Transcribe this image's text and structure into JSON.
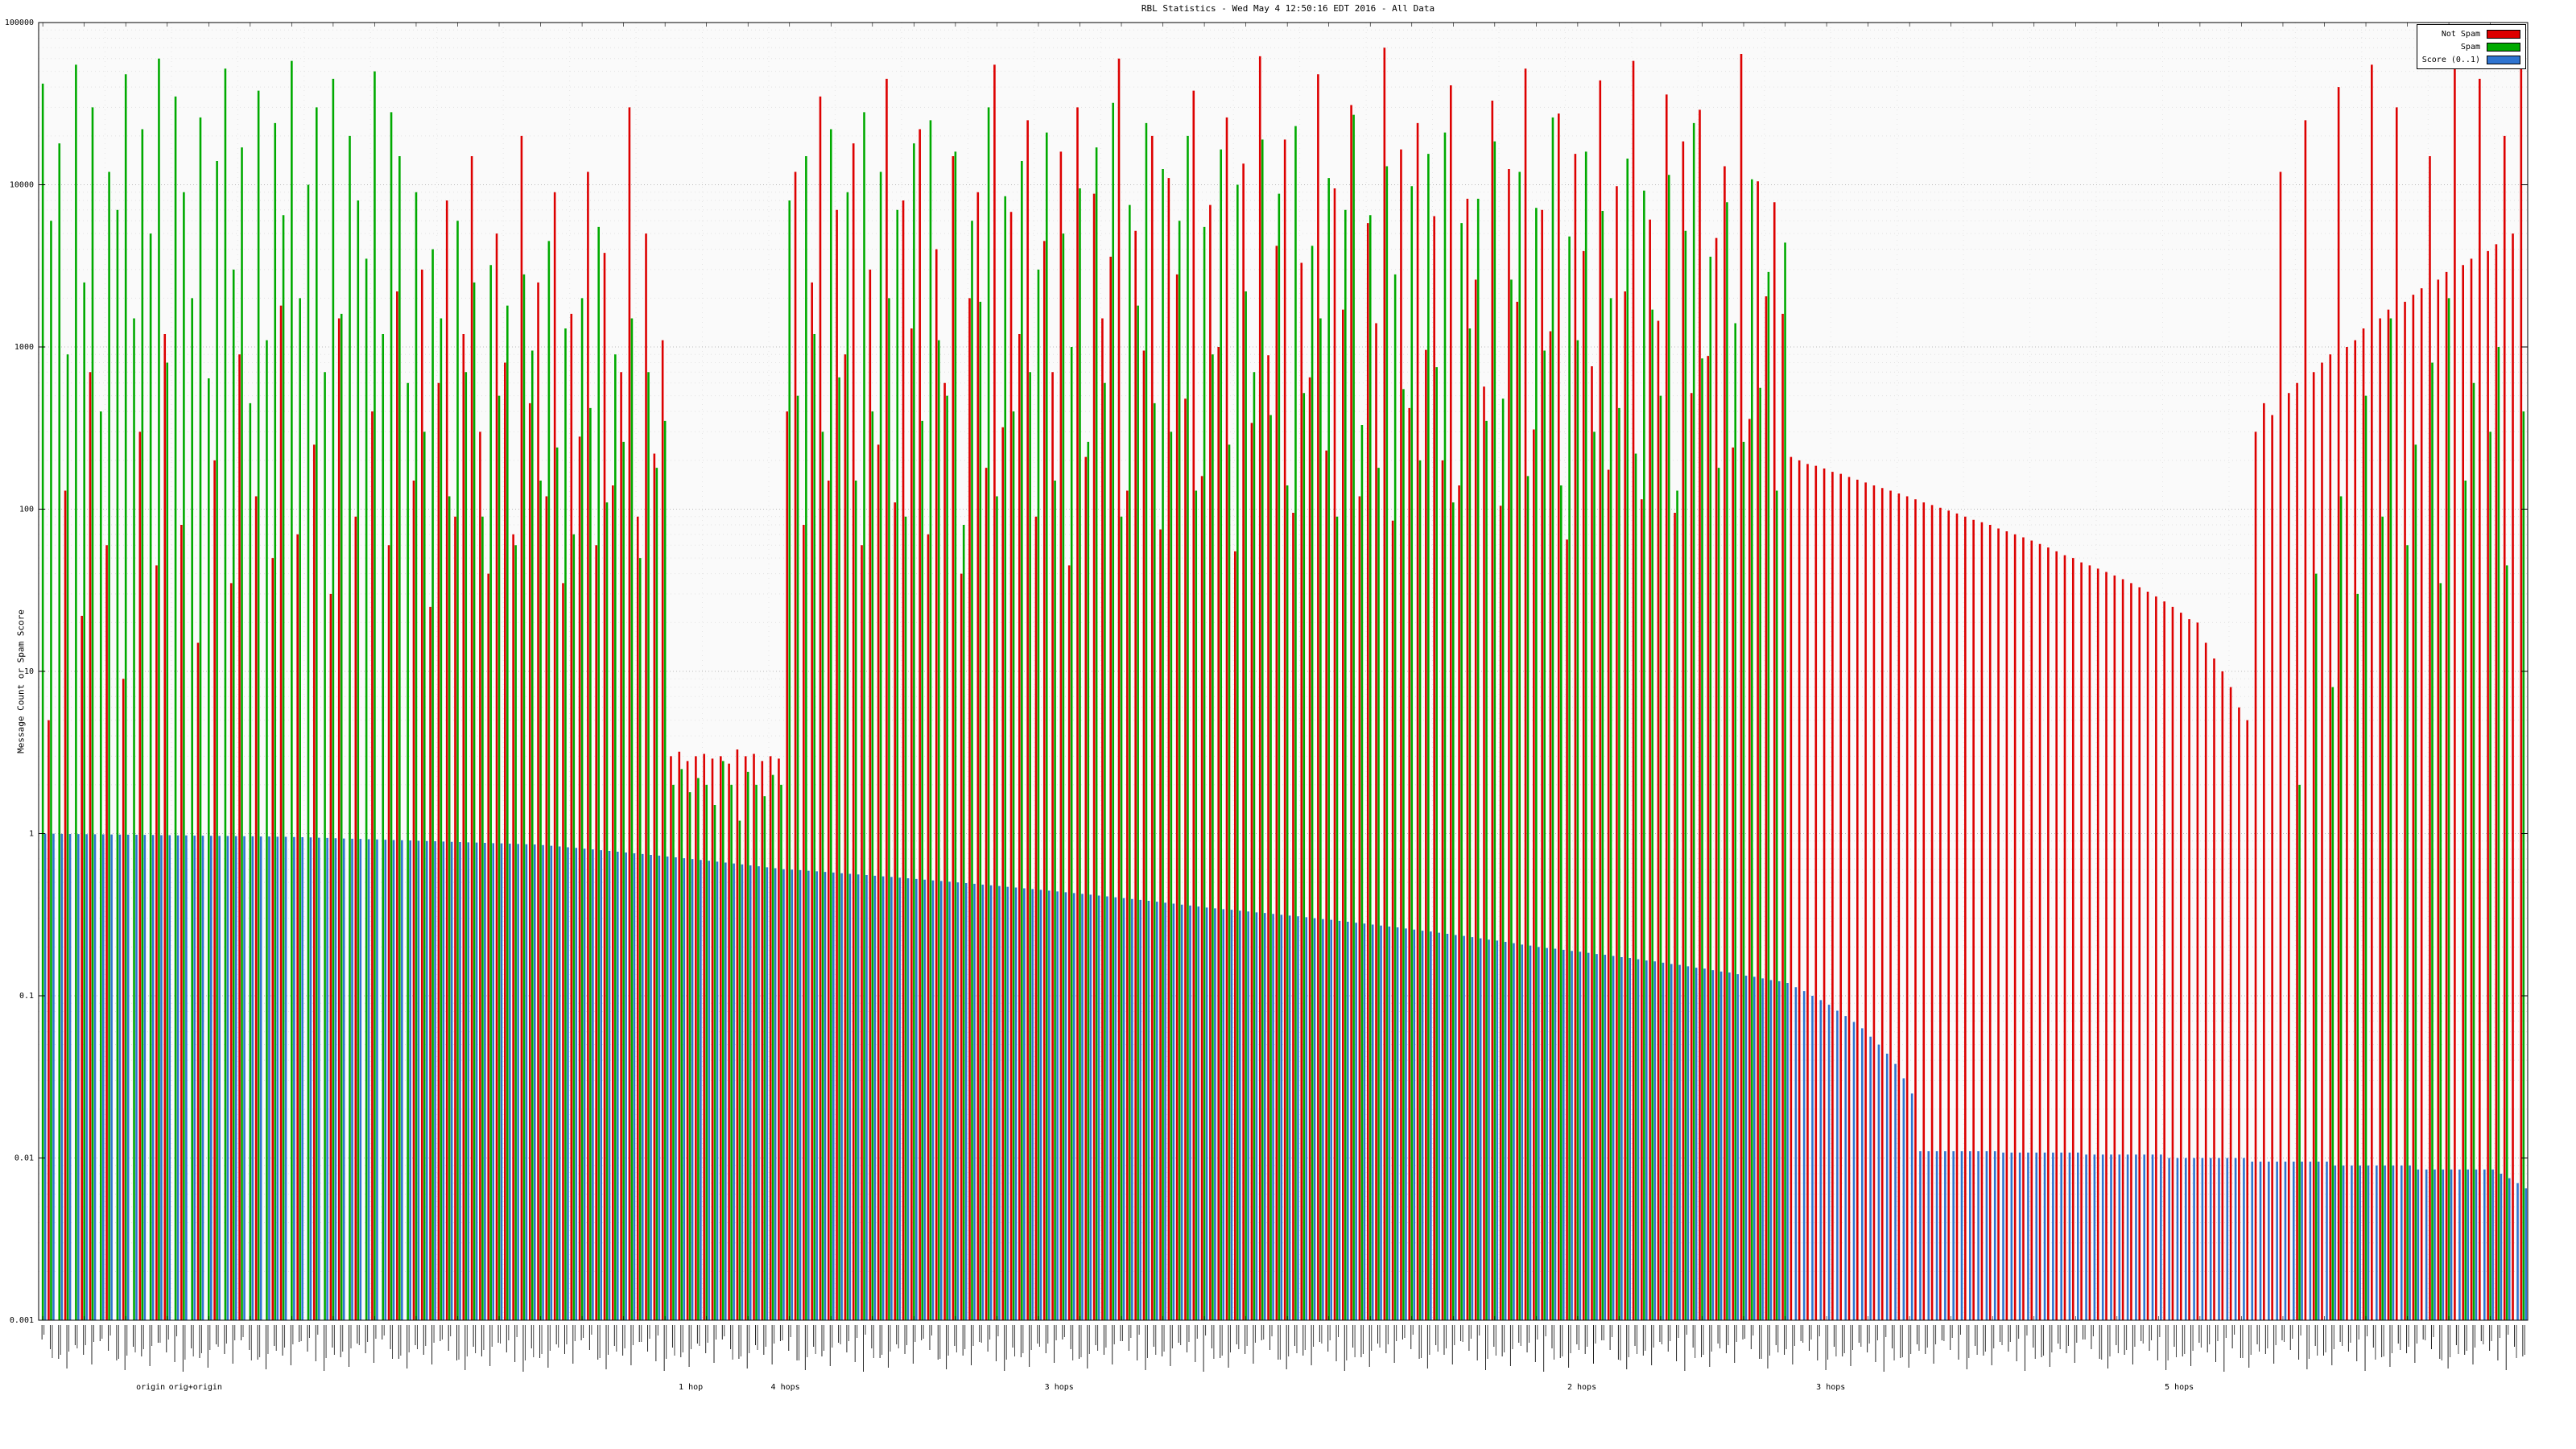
{
  "title": "RBL Statistics - Wed May  4 12:50:16 EDT 2016 - All Data",
  "legend": [
    {
      "label": "Not Spam",
      "color": "#dd0000"
    },
    {
      "label": "Spam",
      "color": "#00aa00"
    },
    {
      "label": "Score (0..1)",
      "color": "#2f74d0"
    }
  ],
  "chart_data": {
    "type": "bar",
    "title": "RBL Statistics - Wed May  4 12:50:16 EDT 2016 - All Data",
    "xlabel": "",
    "ylabel": "Message Count or Spam Score",
    "yscale": "log",
    "ylim": [
      0.001,
      100000
    ],
    "yticks": [
      100000,
      10000,
      1000,
      100,
      10,
      1,
      0.1,
      0.01,
      0.001
    ],
    "grid": true,
    "legend_position": "top-right",
    "x_axis": {
      "labels_illegible": true
    },
    "group_labels": [
      {
        "label": "origin",
        "x": 0.045
      },
      {
        "label": "orig+origin",
        "x": 0.063
      },
      {
        "label": "1 hop",
        "x": 0.262
      },
      {
        "label": "4 hops",
        "x": 0.3
      },
      {
        "label": "3 hops",
        "x": 0.41
      },
      {
        "label": "2 hops",
        "x": 0.62
      },
      {
        "label": "3 hops",
        "x": 0.72
      },
      {
        "label": "5 hops",
        "x": 0.86
      }
    ],
    "series": [
      {
        "name": "Not Spam",
        "color": "#dd0000",
        "values": [
          0,
          5,
          0,
          130,
          0,
          22,
          700,
          0,
          60,
          0,
          9,
          0,
          300,
          0,
          45,
          1200,
          0,
          80,
          0,
          15,
          0,
          200,
          0,
          35,
          900,
          0,
          120,
          0,
          50,
          1800,
          0,
          70,
          0,
          250,
          0,
          30,
          1500,
          0,
          90,
          0,
          400,
          0,
          60,
          2200,
          0,
          150,
          3000,
          25,
          600,
          8000,
          90,
          1200,
          15000,
          300,
          40,
          5000,
          800,
          70,
          20000,
          450,
          2500,
          120,
          9000,
          35,
          1600,
          280,
          12000,
          60,
          3800,
          140,
          700,
          30000,
          90,
          5000,
          220,
          1100,
          3,
          3.2,
          2.8,
          3,
          3.1,
          2.9,
          3,
          2.7,
          3.3,
          3,
          3.1,
          2.8,
          3,
          2.9,
          400,
          12000,
          80,
          2500,
          35000,
          150,
          7000,
          900,
          18000,
          60,
          3000,
          250,
          45000,
          110,
          8000,
          1300,
          22000,
          70,
          4000,
          600,
          15000,
          40,
          2000,
          9000,
          180,
          55000,
          320,
          6800,
          1200,
          25000,
          90,
          4500,
          700,
          16000,
          45,
          30000,
          210,
          8800,
          1500,
          3600,
          60000,
          130,
          5200,
          950,
          20000,
          75,
          11000,
          2800,
          480,
          38000,
          160,
          7500,
          1000,
          26000,
          55,
          13500,
          340,
          62000,
          890,
          4200,
          19000,
          95,
          3300,
          650,
          48000,
          230,
          9500,
          1700,
          31000,
          120,
          5800,
          1400,
          70000,
          85,
          16500,
          420,
          24000,
          960,
          6400,
          200,
          41000,
          140,
          8200,
          2600,
          570,
          33000,
          105,
          12500,
          1900,
          52000,
          310,
          7000,
          1250,
          27500,
          65,
          15500,
          3900,
          760,
          44000,
          175,
          9800,
          2200,
          58000,
          115,
          6100,
          1450,
          36000,
          95,
          18500,
          520,
          29000,
          880,
          4700,
          13000,
          240,
          64000,
          360,
          10500,
          2050,
          7800,
          1600,
          210,
          200,
          190,
          185,
          178,
          170,
          165,
          158,
          152,
          146,
          140,
          135,
          130,
          125,
          120,
          115,
          110,
          106,
          102,
          98,
          94,
          90,
          86,
          83,
          80,
          76,
          73,
          70,
          67,
          64,
          61,
          58,
          55,
          52,
          50,
          47,
          45,
          43,
          41,
          39,
          37,
          35,
          33,
          31,
          29,
          27,
          25,
          23,
          21,
          20,
          15,
          12,
          10,
          8,
          6,
          5,
          300,
          450,
          380,
          12000,
          520,
          600,
          25000,
          700,
          800,
          900,
          40000,
          1000,
          1100,
          1300,
          55000,
          1500,
          1700,
          30000,
          1900,
          2100,
          2300,
          15000,
          2600,
          2900,
          60000,
          3200,
          3500,
          45000,
          3900,
          4300,
          20000,
          5000,
          65000
        ]
      },
      {
        "name": "Spam",
        "color": "#00aa00",
        "values": [
          42000,
          6000,
          18000,
          900,
          55000,
          2500,
          30000,
          400,
          12000,
          7000,
          48000,
          1500,
          22000,
          5000,
          60000,
          800,
          35000,
          9000,
          2000,
          26000,
          640,
          14000,
          52000,
          3000,
          17000,
          450,
          38000,
          1100,
          24000,
          6500,
          58000,
          2000,
          10000,
          30000,
          700,
          45000,
          1600,
          20000,
          8000,
          3500,
          50000,
          1200,
          28000,
          15000,
          600,
          9000,
          300,
          4000,
          1500,
          120,
          6000,
          700,
          2500,
          90,
          3200,
          500,
          1800,
          60,
          2800,
          950,
          150,
          4500,
          240,
          1300,
          70,
          2000,
          420,
          5500,
          110,
          900,
          260,
          1500,
          50,
          700,
          180,
          350,
          2,
          2.5,
          1.8,
          2.2,
          2,
          1.5,
          2.8,
          2,
          1.2,
          2.4,
          2,
          1.7,
          2.3,
          2,
          8000,
          500,
          15000,
          1200,
          300,
          22000,
          650,
          9000,
          150,
          28000,
          400,
          12000,
          2000,
          7000,
          90,
          18000,
          350,
          25000,
          1100,
          500,
          16000,
          80,
          6000,
          1900,
          30000,
          120,
          8500,
          400,
          14000,
          700,
          3000,
          21000,
          150,
          5000,
          1000,
          9500,
          260,
          17000,
          600,
          32000,
          90,
          7500,
          1800,
          24000,
          450,
          12500,
          300,
          6000,
          20000,
          130,
          5500,
          900,
          16500,
          250,
          10000,
          2200,
          700,
          19000,
          380,
          8800,
          140,
          23000,
          520,
          4200,
          1500,
          11000,
          90,
          7000,
          27000,
          330,
          6500,
          180,
          13000,
          2800,
          550,
          9800,
          200,
          15500,
          750,
          21000,
          110,
          5800,
          1300,
          8200,
          350,
          18500,
          480,
          2600,
          12000,
          160,
          7200,
          950,
          26000,
          140,
          4800,
          1100,
          16000,
          300,
          6900,
          2000,
          420,
          14500,
          220,
          9200,
          1700,
          500,
          11500,
          130,
          5200,
          24000,
          850,
          3600,
          180,
          7800,
          1400,
          260,
          10800,
          560,
          2900,
          130,
          4400,
          0,
          0,
          0,
          0,
          0,
          0,
          0,
          0,
          0,
          0,
          0,
          0,
          0,
          0,
          0,
          0,
          0,
          0,
          0,
          0,
          0,
          0,
          0,
          0,
          0,
          0,
          0,
          0,
          0,
          0,
          0,
          0,
          0,
          0,
          0,
          0,
          0,
          0,
          0,
          0,
          0,
          0,
          0,
          0,
          0,
          0,
          0,
          0,
          0,
          0,
          0,
          0,
          0,
          0,
          0,
          0,
          0,
          0,
          0,
          0,
          0,
          2,
          0,
          40,
          0,
          8,
          120,
          0,
          30,
          500,
          0,
          90,
          1500,
          0,
          60,
          250,
          0,
          800,
          35,
          2000,
          0,
          150,
          600,
          0,
          300,
          1000,
          45,
          0,
          400
        ]
      },
      {
        "name": "Score (0..1)",
        "color": "#2f74d0",
        "values": [
          0.999,
          0.998,
          0.996,
          0.995,
          0.993,
          0.992,
          0.99,
          0.989,
          0.987,
          0.986,
          0.984,
          0.983,
          0.981,
          0.98,
          0.978,
          0.977,
          0.975,
          0.974,
          0.972,
          0.971,
          0.969,
          0.968,
          0.966,
          0.965,
          0.963,
          0.962,
          0.96,
          0.959,
          0.957,
          0.956,
          0.953,
          0.95,
          0.947,
          0.943,
          0.94,
          0.937,
          0.933,
          0.93,
          0.927,
          0.923,
          0.92,
          0.917,
          0.913,
          0.91,
          0.907,
          0.903,
          0.9,
          0.897,
          0.893,
          0.89,
          0.887,
          0.883,
          0.88,
          0.877,
          0.873,
          0.87,
          0.867,
          0.863,
          0.86,
          0.857,
          0.85,
          0.841,
          0.833,
          0.824,
          0.816,
          0.807,
          0.799,
          0.79,
          0.782,
          0.773,
          0.765,
          0.756,
          0.748,
          0.739,
          0.731,
          0.722,
          0.714,
          0.705,
          0.697,
          0.688,
          0.68,
          0.671,
          0.663,
          0.654,
          0.646,
          0.637,
          0.629,
          0.62,
          0.612,
          0.603,
          0.6,
          0.595,
          0.59,
          0.585,
          0.58,
          0.575,
          0.57,
          0.565,
          0.56,
          0.555,
          0.55,
          0.545,
          0.54,
          0.535,
          0.53,
          0.525,
          0.52,
          0.515,
          0.51,
          0.505,
          0.5,
          0.495,
          0.49,
          0.485,
          0.48,
          0.475,
          0.47,
          0.465,
          0.46,
          0.455,
          0.45,
          0.445,
          0.44,
          0.435,
          0.43,
          0.425,
          0.42,
          0.415,
          0.41,
          0.405,
          0.4,
          0.395,
          0.39,
          0.385,
          0.38,
          0.375,
          0.37,
          0.365,
          0.36,
          0.355,
          0.35,
          0.346,
          0.342,
          0.339,
          0.335,
          0.331,
          0.327,
          0.324,
          0.32,
          0.316,
          0.312,
          0.309,
          0.305,
          0.301,
          0.297,
          0.294,
          0.29,
          0.286,
          0.282,
          0.279,
          0.275,
          0.271,
          0.267,
          0.264,
          0.26,
          0.256,
          0.252,
          0.249,
          0.245,
          0.241,
          0.237,
          0.234,
          0.23,
          0.226,
          0.222,
          0.219,
          0.215,
          0.211,
          0.207,
          0.204,
          0.2,
          0.197,
          0.195,
          0.192,
          0.189,
          0.187,
          0.184,
          0.181,
          0.179,
          0.176,
          0.173,
          0.171,
          0.168,
          0.165,
          0.163,
          0.16,
          0.157,
          0.155,
          0.152,
          0.149,
          0.147,
          0.144,
          0.141,
          0.139,
          0.136,
          0.133,
          0.131,
          0.128,
          0.125,
          0.123,
          0.12,
          0.113,
          0.107,
          0.1,
          0.094,
          0.088,
          0.081,
          0.075,
          0.069,
          0.063,
          0.056,
          0.05,
          0.044,
          0.038,
          0.031,
          0.025,
          0.011,
          0.011,
          0.011,
          0.011,
          0.011,
          0.011,
          0.011,
          0.011,
          0.011,
          0.011,
          0.0108,
          0.0108,
          0.0108,
          0.0108,
          0.0108,
          0.0108,
          0.0108,
          0.0108,
          0.0108,
          0.0108,
          0.0105,
          0.0105,
          0.0105,
          0.0105,
          0.0105,
          0.0105,
          0.0105,
          0.0105,
          0.0105,
          0.0105,
          0.01,
          0.01,
          0.01,
          0.01,
          0.01,
          0.01,
          0.01,
          0.01,
          0.01,
          0.01,
          0.0095,
          0.0095,
          0.0095,
          0.0095,
          0.0095,
          0.0095,
          0.0095,
          0.0095,
          0.0095,
          0.0095,
          0.009,
          0.009,
          0.009,
          0.009,
          0.009,
          0.009,
          0.009,
          0.009,
          0.009,
          0.009,
          0.0085,
          0.0085,
          0.0085,
          0.0085,
          0.0085,
          0.0085,
          0.0085,
          0.0085,
          0.0085,
          0.0085,
          0.008,
          0.0075,
          0.007,
          0.0065
        ]
      }
    ]
  }
}
